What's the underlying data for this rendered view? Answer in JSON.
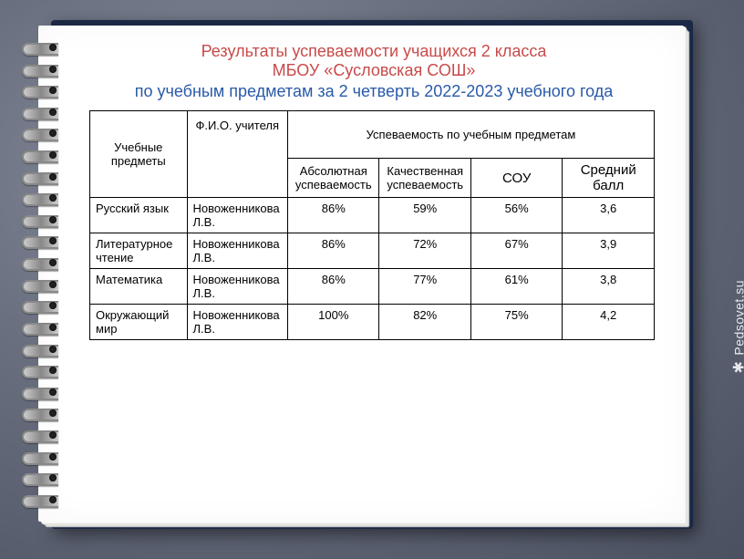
{
  "title": {
    "line1": "Результаты успеваемости учащихся 2 класса",
    "line2": "МБОУ «Сусловская СОШ»",
    "line3": "по учебным предметам за  2 четверть 2022-2023 учебного года"
  },
  "headers": {
    "subjects": "Учебные предметы",
    "teacher": "Ф.И.О. учителя",
    "performance_group": "Успеваемость по учебным предметам",
    "absolute": "Абсолютная успеваемость",
    "quality": "Качественная успеваемость",
    "sou": "СОУ",
    "avg": "Средний балл"
  },
  "rows": [
    {
      "subject": "Русский язык",
      "teacher": "Новоженникова Л.В.",
      "absolute": "86%",
      "quality": "59%",
      "sou": "56%",
      "avg": "3,6"
    },
    {
      "subject": "Литературное чтение",
      "teacher": "Новоженникова Л.В.",
      "absolute": "86%",
      "quality": "72%",
      "sou": "67%",
      "avg": "3,9"
    },
    {
      "subject": "Математика",
      "teacher": "Новоженникова Л.В.",
      "absolute": "86%",
      "quality": "77%",
      "sou": "61%",
      "avg": "3,8"
    },
    {
      "subject": "Окружающий мир",
      "teacher": "Новоженникова Л.В.",
      "absolute": "100%",
      "quality": "82%",
      "sou": "75%",
      "avg": "4,2"
    }
  ],
  "watermark": {
    "text": "Pedsovet.su",
    "icon": "✱"
  },
  "style": {
    "title_color_red": "#c84a4a",
    "title_color_blue": "#2a5aa8",
    "page_bg": "#ffffff",
    "cover_bg": "#1a2845",
    "border_color": "#000000",
    "body_font": "Arial",
    "title_fontsize": 18,
    "header_fontsize": 15,
    "subheader_fontsize": 13,
    "cell_fontsize": 15,
    "teacher_fontsize": 12,
    "spiral_rings": 22
  }
}
